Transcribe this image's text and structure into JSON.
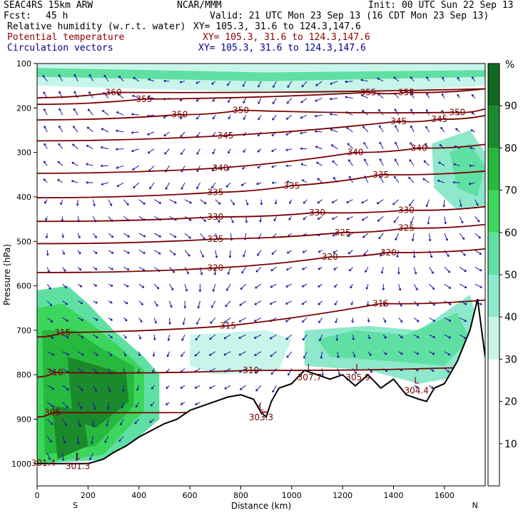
{
  "header": {
    "model": "SEAC4RS 15km ARW",
    "center": "NCAR/MMM",
    "init": "Init: 00 UTC Sun 22 Sep 13",
    "fcst_label": "Fcst:",
    "fcst_value": "45 h",
    "valid": "Valid: 21 UTC Mon 23 Sep 13 (16 CDT Mon 23 Sep 13)"
  },
  "legend_lines": [
    {
      "name": "Relative humidity (w.r.t. water)",
      "xy": "XY= 105.3, 31.6 to 124.3,147.6",
      "color": "#000000"
    },
    {
      "name": "Potential temperature",
      "xy": "XY= 105.3, 31.6 to 124.3,147.6",
      "color": "#8b0000"
    },
    {
      "name": "Circulation vectors",
      "xy": "XY= 105.3, 31.6 to 124.3,147.6",
      "color": "#00008b"
    }
  ],
  "chart_data": {
    "type": "heatmap",
    "xlabel": "Distance (km)",
    "ylabel": "Pressure (hPa)",
    "xlim": [
      0,
      1760
    ],
    "ylim": [
      1050,
      100
    ],
    "x_ticks": [
      0,
      200,
      400,
      600,
      800,
      1000,
      1200,
      1400,
      1600
    ],
    "y_ticks": [
      100,
      200,
      300,
      400,
      500,
      600,
      700,
      800,
      900,
      1000
    ],
    "x_end_labels": {
      "left": "S",
      "right": "N"
    },
    "colorbar": {
      "unit": "%",
      "levels": [
        10,
        20,
        30,
        40,
        50,
        60,
        70,
        80,
        90
      ],
      "colors": [
        "#ffffff",
        "#ffffff",
        "#ffffff",
        "#c8f5ea",
        "#8ee8cc",
        "#5fe0a2",
        "#3cd65c",
        "#26b93e",
        "#1a8a2c",
        "#0f6a1f"
      ]
    },
    "theta_contours": [
      {
        "value": 360,
        "label_positions": [
          [
            300,
            165
          ]
        ]
      },
      {
        "value": 355,
        "label_positions": [
          [
            420,
            180
          ],
          [
            1300,
            165
          ],
          [
            1450,
            165
          ]
        ]
      },
      {
        "value": 350,
        "label_positions": [
          [
            560,
            215
          ],
          [
            800,
            205
          ],
          [
            1650,
            210
          ]
        ]
      },
      {
        "value": 345,
        "label_positions": [
          [
            740,
            262
          ],
          [
            1420,
            230
          ],
          [
            1580,
            225
          ]
        ]
      },
      {
        "value": 340,
        "label_positions": [
          [
            720,
            335
          ],
          [
            1250,
            300
          ],
          [
            1500,
            290
          ]
        ]
      },
      {
        "value": 335,
        "label_positions": [
          [
            700,
            390
          ],
          [
            1000,
            375
          ],
          [
            1350,
            350
          ]
        ]
      },
      {
        "value": 330,
        "label_positions": [
          [
            700,
            445
          ],
          [
            1100,
            435
          ],
          [
            1450,
            430
          ]
        ]
      },
      {
        "value": 325,
        "label_positions": [
          [
            700,
            495
          ],
          [
            1200,
            480
          ],
          [
            1450,
            470
          ]
        ]
      },
      {
        "value": 320,
        "label_positions": [
          [
            700,
            560
          ],
          [
            1150,
            535
          ],
          [
            1380,
            525
          ]
        ]
      },
      {
        "value": 315,
        "label_positions": [
          [
            100,
            705
          ],
          [
            750,
            690
          ],
          [
            1350,
            640
          ]
        ]
      },
      {
        "value": 310,
        "label_positions": [
          [
            70,
            795
          ],
          [
            840,
            790
          ]
        ]
      },
      {
        "value": 305,
        "label_positions": [
          [
            60,
            885
          ]
        ]
      }
    ],
    "low_labels": [
      {
        "text": "L",
        "value": "301.3",
        "x": 160,
        "p": 990
      },
      {
        "text": "L",
        "value": "303.3",
        "x": 880,
        "p": 880
      },
      {
        "text": "L",
        "value": "307.7",
        "x": 1070,
        "p": 790
      },
      {
        "text": "L",
        "value": "305.9",
        "x": 1260,
        "p": 790
      },
      {
        "text": "L",
        "value": "304.4",
        "x": 1490,
        "p": 820
      },
      {
        "text": "",
        "value": "301.4",
        "x": 25,
        "p": 1005
      }
    ],
    "terrain_profile": {
      "x": [
        0,
        100,
        200,
        260,
        300,
        350,
        400,
        450,
        500,
        550,
        600,
        650,
        700,
        750,
        800,
        850,
        880,
        900,
        920,
        950,
        1000,
        1050,
        1100,
        1150,
        1200,
        1250,
        1300,
        1350,
        1400,
        1450,
        1500,
        1530,
        1560,
        1600,
        1650,
        1700,
        1730,
        1760
      ],
      "p": [
        1000,
        1000,
        1000,
        990,
        975,
        960,
        940,
        925,
        910,
        900,
        880,
        870,
        860,
        850,
        845,
        855,
        885,
        895,
        860,
        830,
        820,
        790,
        800,
        810,
        800,
        825,
        800,
        830,
        810,
        845,
        855,
        860,
        830,
        820,
        770,
        700,
        630,
        760
      ]
    }
  }
}
